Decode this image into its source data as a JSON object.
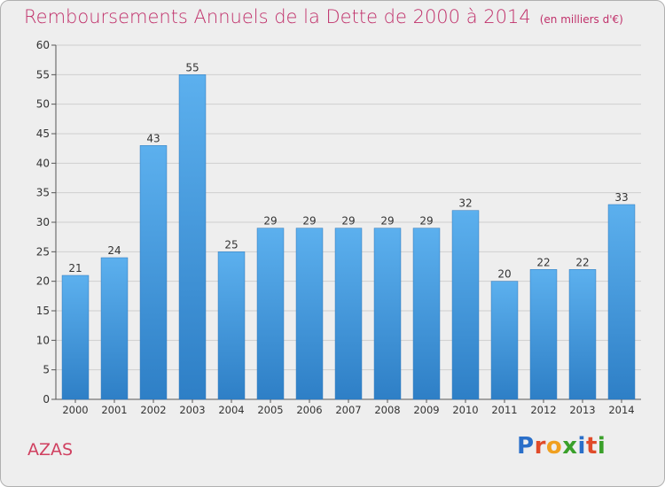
{
  "chart_data": {
    "type": "bar",
    "title": "Remboursements Annuels de la Dette de 2000 à 2014",
    "subtitle": "(en milliers d'€)",
    "categories": [
      "2000",
      "2001",
      "2002",
      "2003",
      "2004",
      "2005",
      "2006",
      "2007",
      "2008",
      "2009",
      "2010",
      "2011",
      "2012",
      "2013",
      "2014"
    ],
    "values": [
      21,
      24,
      43,
      55,
      25,
      29,
      29,
      29,
      29,
      29,
      32,
      20,
      22,
      22,
      33
    ],
    "ylim": [
      0,
      60
    ],
    "yticks": [
      0,
      5,
      10,
      15,
      20,
      25,
      30,
      35,
      40,
      45,
      50,
      55,
      60
    ],
    "grid": true,
    "bar_color": "#4a9fe0",
    "xlabel": "",
    "ylabel": ""
  },
  "commune": "AZAS",
  "logo": {
    "letters": [
      "P",
      "r",
      "o",
      "x",
      "i",
      "t",
      "i"
    ],
    "colors": [
      "#2a6fc9",
      "#e04b2a",
      "#f0a020",
      "#3aa02a",
      "#2a6fc9",
      "#e04b2a",
      "#3aa02a"
    ]
  }
}
